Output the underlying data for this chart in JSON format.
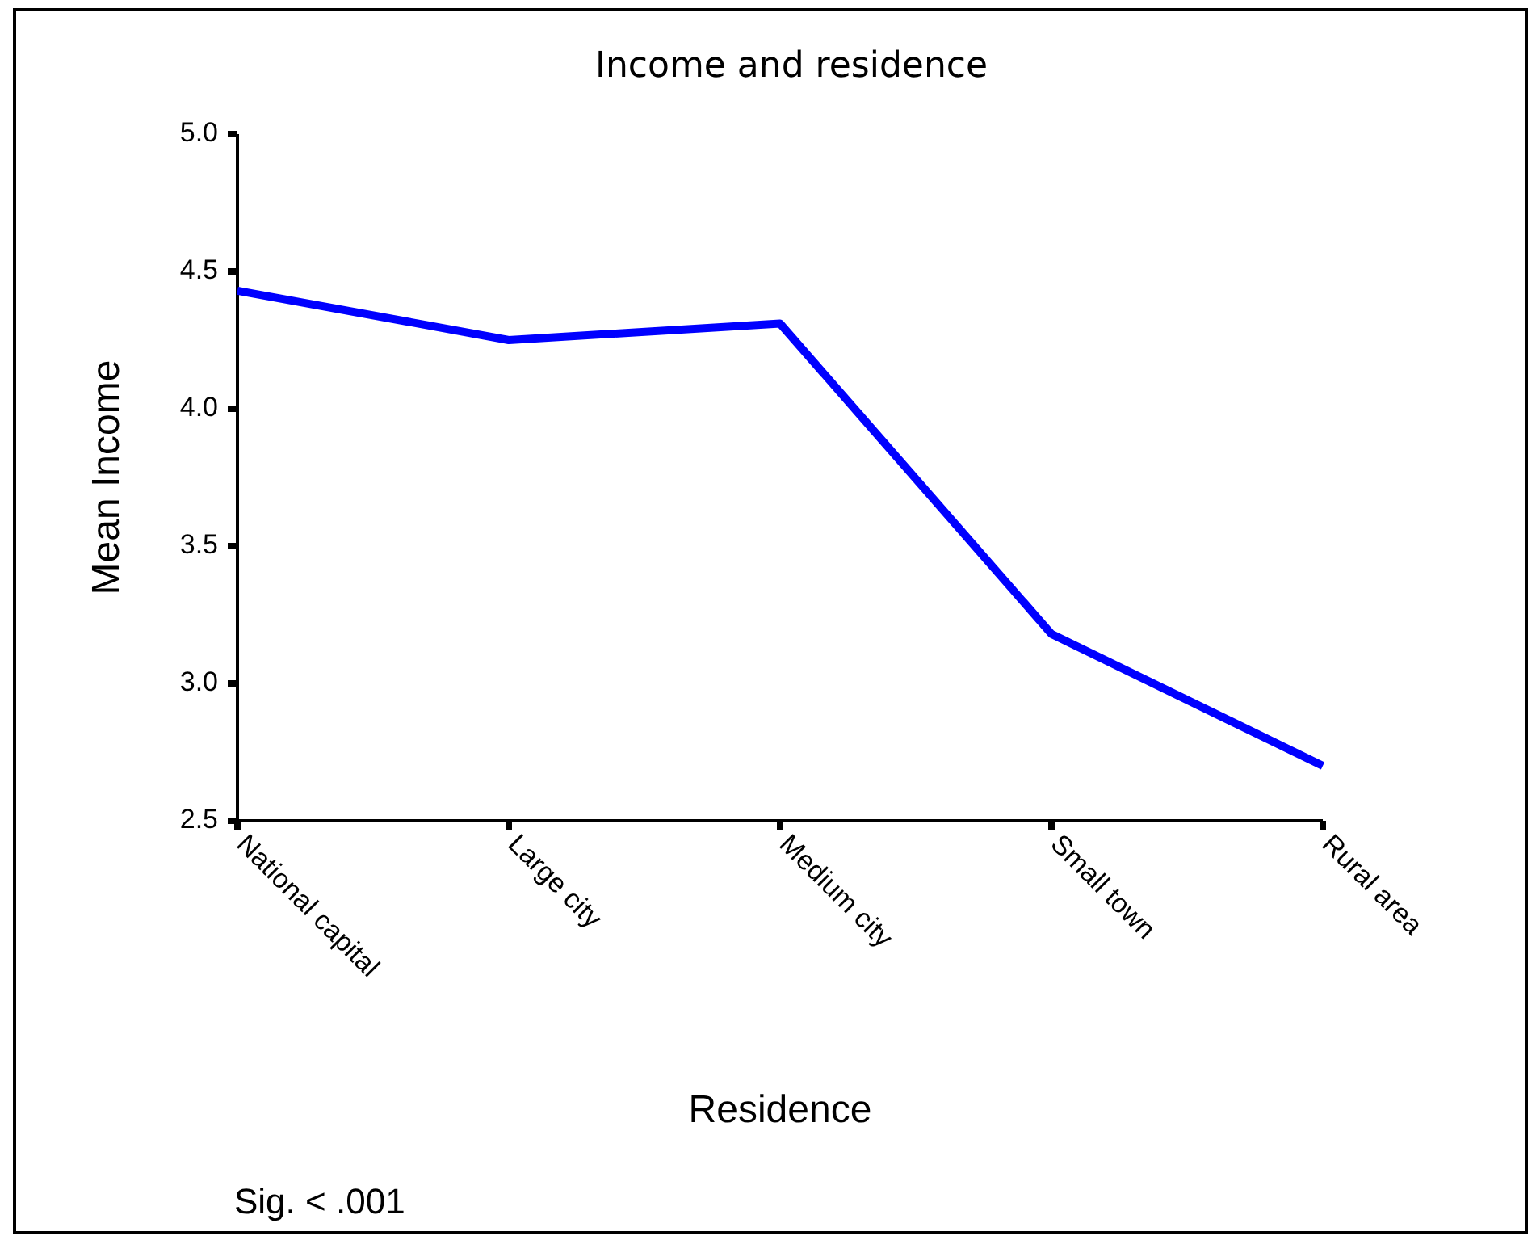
{
  "chart_data": {
    "type": "line",
    "title": "Income and residence",
    "xlabel": "Residence",
    "ylabel": "Mean Income",
    "categories": [
      "National capital",
      "Large city",
      "Medium city",
      "Small town",
      "Rural area"
    ],
    "series": [
      {
        "color": "#0000ff",
        "values": [
          4.43,
          4.25,
          4.31,
          3.18,
          2.7
        ]
      }
    ],
    "ylim": [
      2.5,
      5.0
    ],
    "yticks": [
      {
        "value": 5,
        "label": "5.0"
      },
      4.5,
      {
        "value": 4,
        "label": "4.0"
      },
      3.5,
      {
        "value": 3,
        "label": "3.0"
      },
      2.5
    ],
    "legend": false,
    "marker": "none",
    "line_style": "solid",
    "annotations": [
      "Sig. < .001"
    ]
  }
}
